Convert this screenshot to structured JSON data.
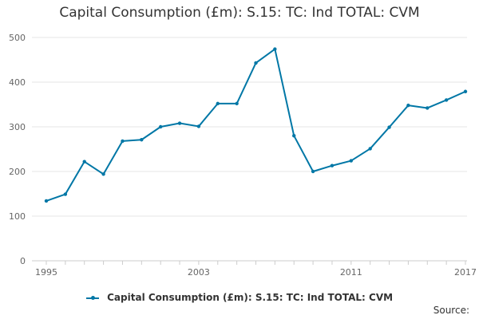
{
  "chart_data": {
    "type": "line",
    "title": "Capital Consumption (£m): S.15: TC: Ind TOTAL: CVM",
    "xlabel": "",
    "ylabel": "",
    "ylim": [
      0,
      500
    ],
    "yticks": [
      0,
      100,
      200,
      300,
      400,
      500
    ],
    "xticks": [
      1995,
      2003,
      2011,
      2017
    ],
    "x": [
      1995,
      1996,
      1997,
      1998,
      1999,
      2000,
      2001,
      2002,
      2003,
      2004,
      2005,
      2006,
      2007,
      2008,
      2009,
      2010,
      2011,
      2012,
      2013,
      2014,
      2015,
      2016,
      2017
    ],
    "series": [
      {
        "name": "Capital Consumption (£m): S.15: TC: Ind TOTAL: CVM",
        "color": "#0077a6",
        "values": [
          134,
          149,
          222,
          194,
          268,
          271,
          300,
          308,
          301,
          352,
          352,
          443,
          474,
          280,
          200,
          213,
          224,
          251,
          299,
          348,
          342,
          360,
          379
        ]
      }
    ],
    "grid": true,
    "legend_position": "bottom"
  },
  "source_label": "Source:"
}
